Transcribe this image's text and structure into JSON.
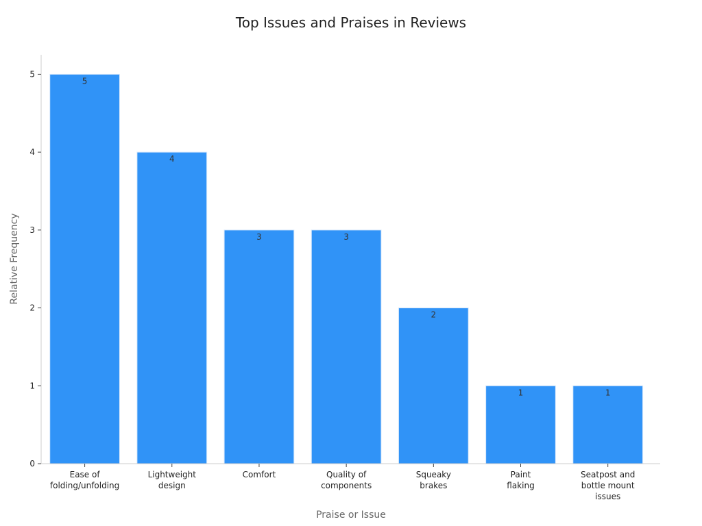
{
  "chart_data": {
    "type": "bar",
    "title": "Top Issues and Praises in Reviews",
    "xlabel": "Praise or Issue",
    "ylabel": "Relative Frequency",
    "categories": [
      [
        "Ease of",
        "folding/unfolding"
      ],
      [
        "Lightweight",
        "design"
      ],
      [
        "Comfort"
      ],
      [
        "Quality of",
        "components"
      ],
      [
        "Squeaky",
        "brakes"
      ],
      [
        "Paint",
        "flaking"
      ],
      [
        "Seatpost and",
        "bottle mount",
        "issues"
      ]
    ],
    "values": [
      5,
      4,
      3,
      3,
      2,
      1,
      1
    ],
    "ylim": [
      0,
      5.25
    ],
    "yticks": [
      0,
      1,
      2,
      3,
      4,
      5
    ],
    "grid": false,
    "legend": "none",
    "colors": {
      "bar": "#3093f7"
    }
  }
}
